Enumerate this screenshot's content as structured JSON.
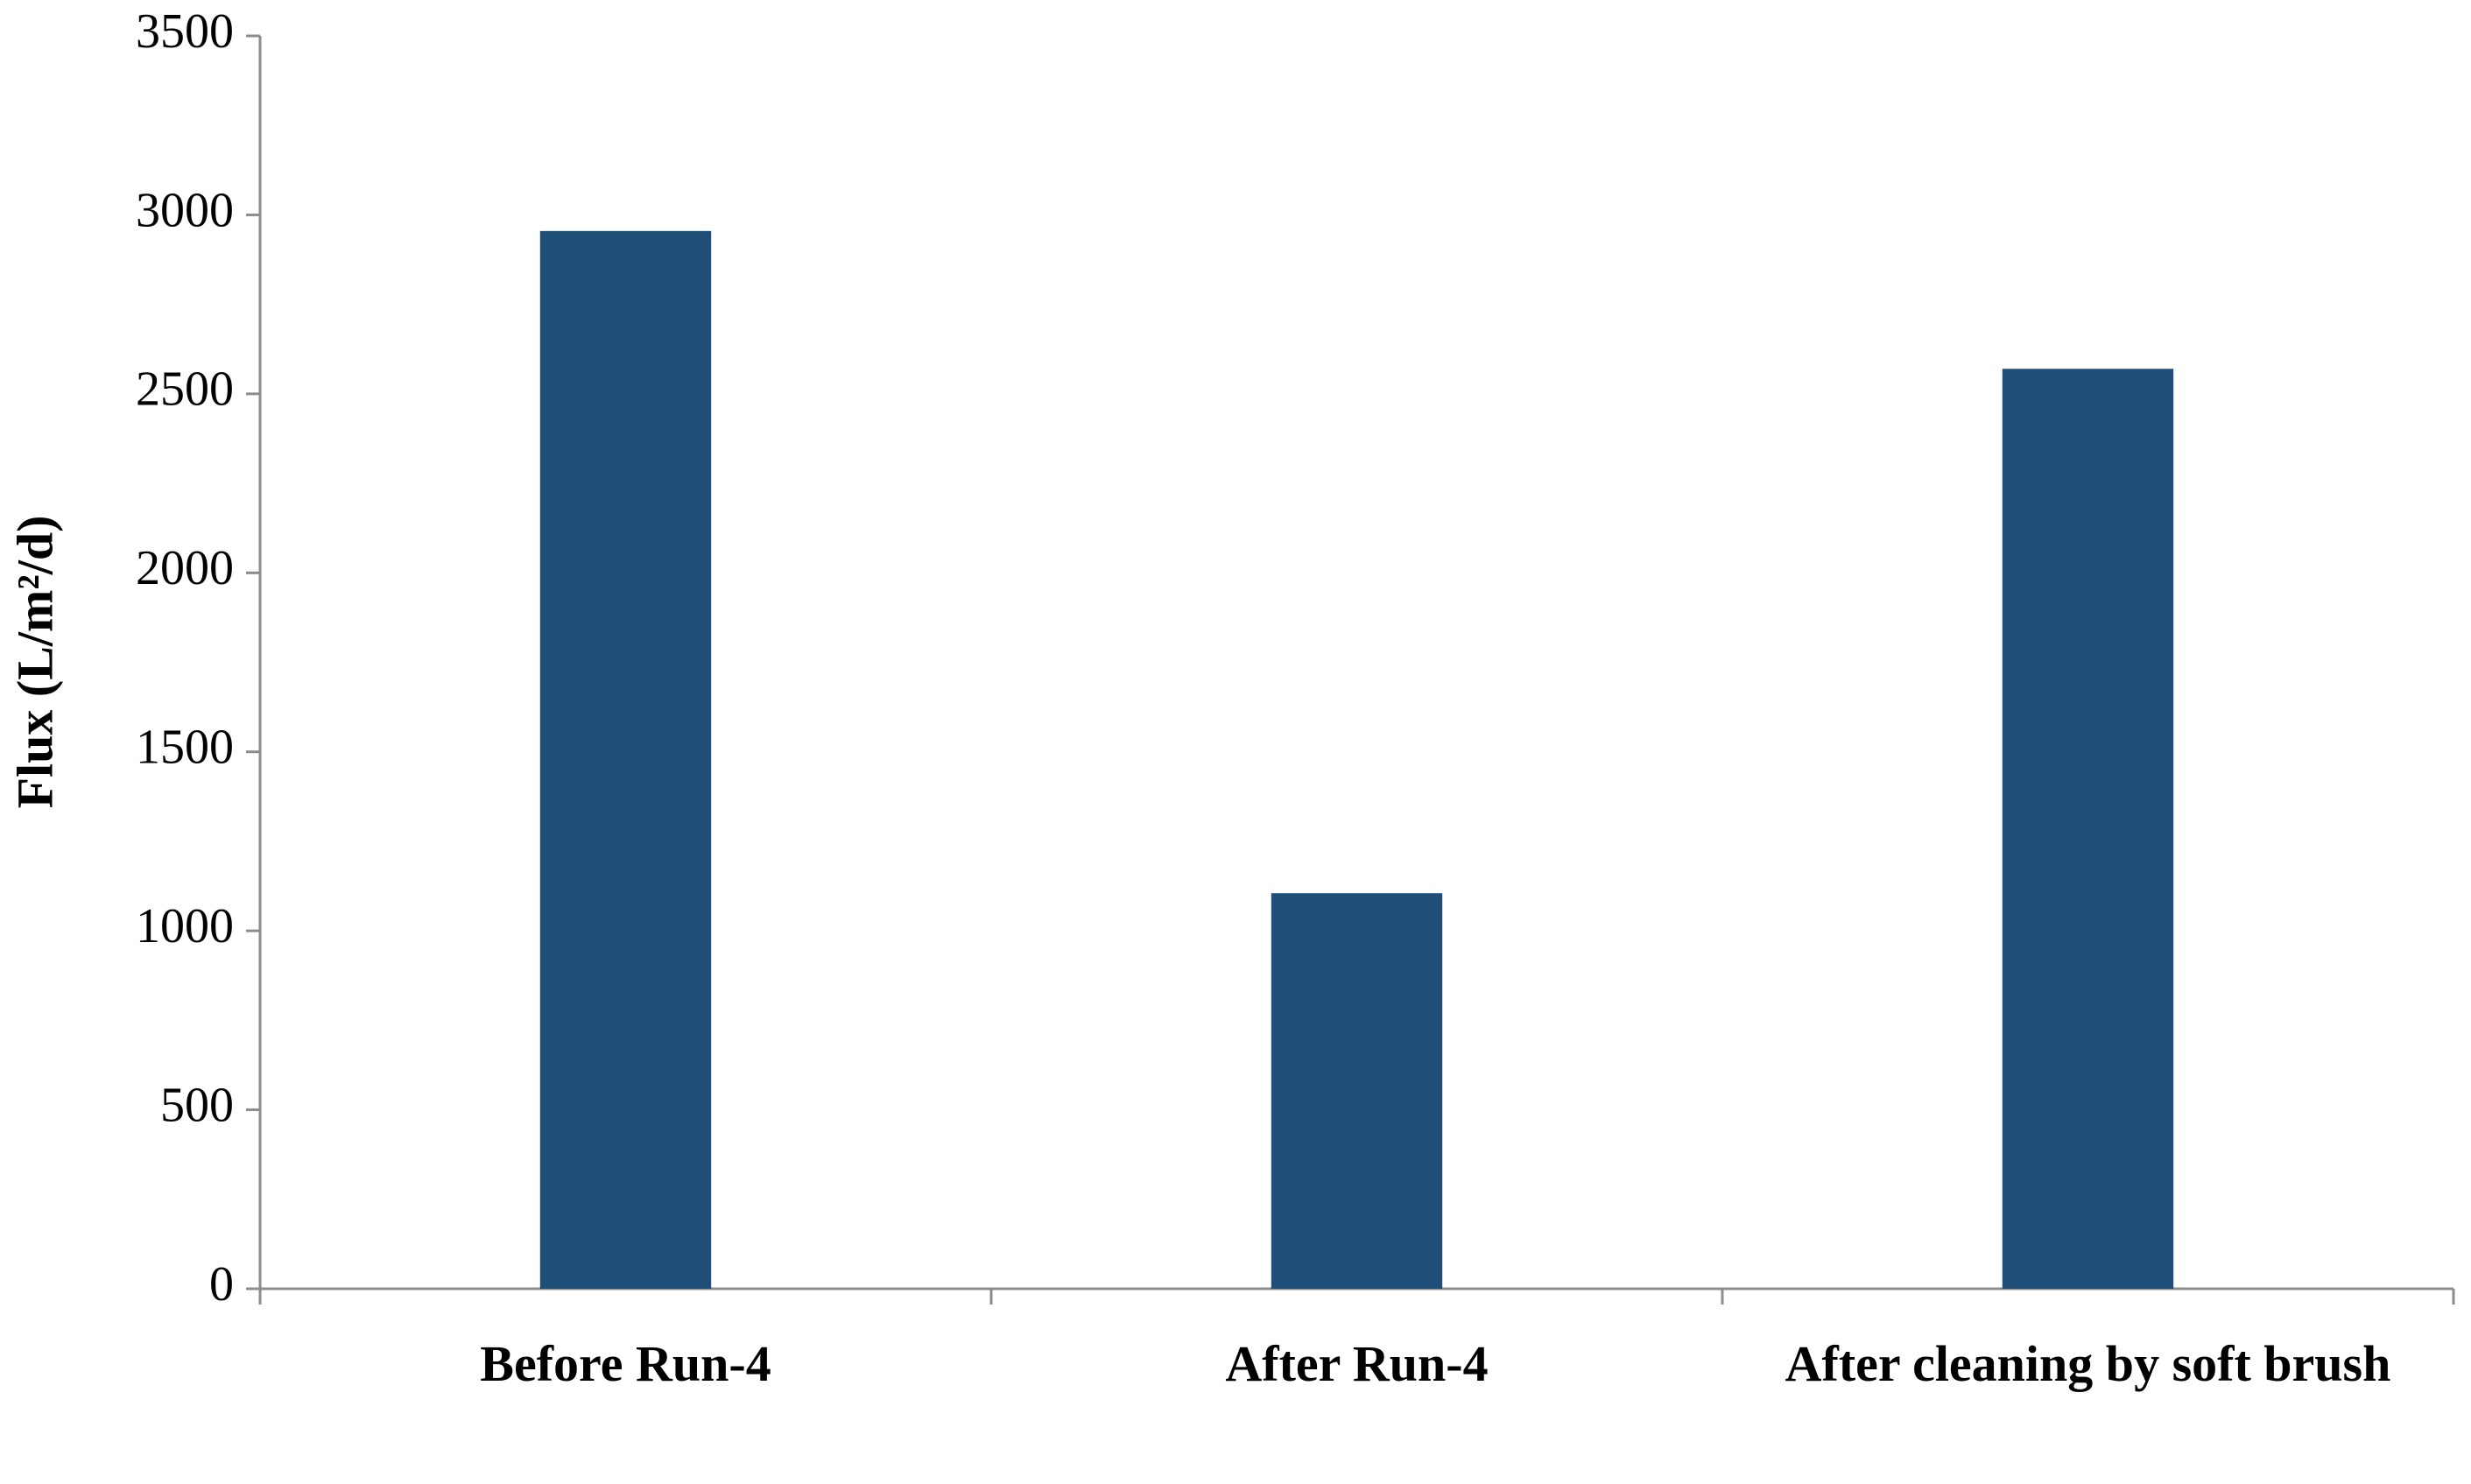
{
  "chart_data": {
    "type": "bar",
    "y_label": "Flux (L/m²/d)",
    "categories": [
      "Before Run-4",
      "After Run-4",
      "After cleaning by soft brush"
    ],
    "values": [
      2955,
      1105,
      2570
    ],
    "color": "#1f4e79",
    "ylim": [
      0,
      3500
    ],
    "yticks": [
      0,
      500,
      1000,
      1500,
      2000,
      2500,
      3000,
      3500
    ],
    "grid": false
  }
}
